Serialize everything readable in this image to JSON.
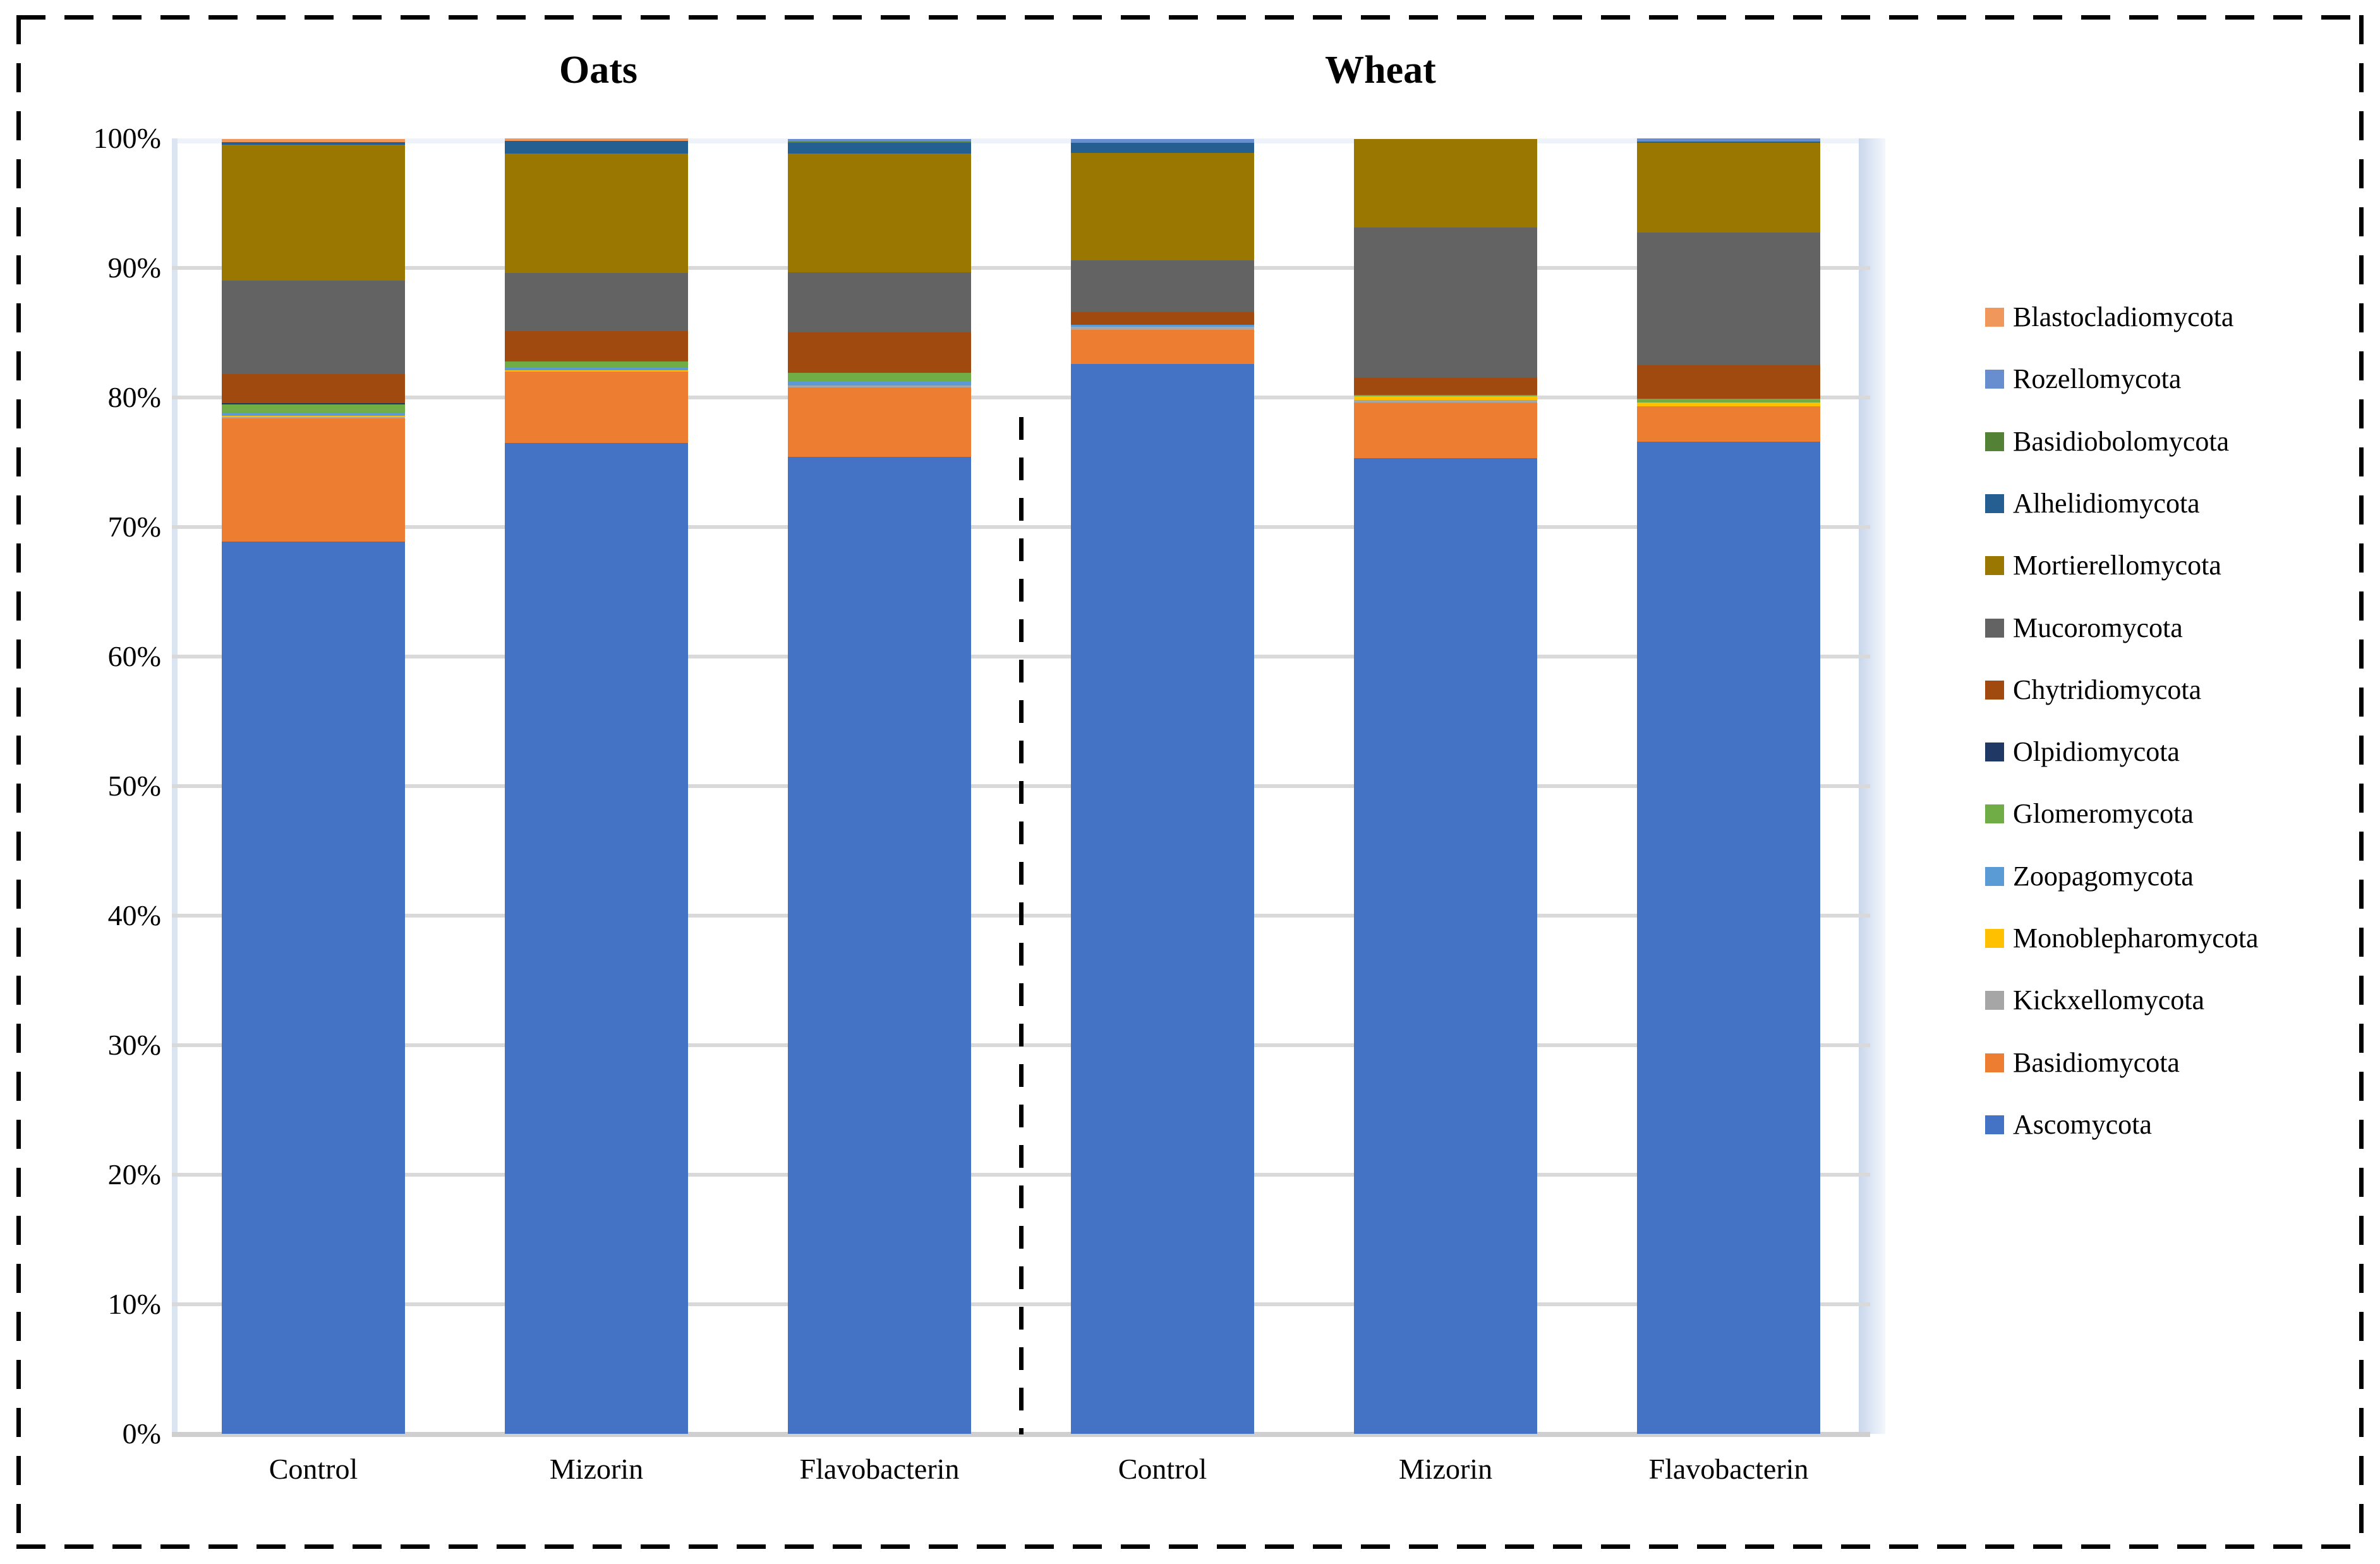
{
  "group_titles": [
    "Oats",
    "Wheat"
  ],
  "y_axis": {
    "tick_labels": [
      "100%",
      "90%",
      "80%",
      "70%",
      "60%",
      "50%",
      "40%",
      "30%",
      "20%",
      "10%",
      "0%"
    ]
  },
  "x_axis": {
    "labels": [
      "Control",
      "Mizorin",
      "Flavobacterin",
      "Control",
      "Mizorin",
      "Flavobacterin"
    ]
  },
  "legend": {
    "position": "right",
    "items_top_to_bottom": [
      "Blastocladiomycota",
      "Rozellomycota",
      "Basidiobolomycota",
      "Alhelidiomycota",
      "Mortierellomycota",
      "Mucoromycota",
      "Chytridiomycota",
      "Olpidiomycota",
      "Glomeromycota",
      "Zoopagomycota",
      "Monoblepharomycota",
      "Kickxellomycota",
      "Basidiomycota",
      "Ascomycota"
    ]
  },
  "chart_data": {
    "type": "bar",
    "stacked": true,
    "stack_unit": "percent",
    "title": "",
    "xlabel": "",
    "ylabel": "",
    "ylim": [
      0,
      100
    ],
    "ytick_step": 10,
    "grid": true,
    "legend_position": "right",
    "group_titles": [
      "Oats",
      "Wheat"
    ],
    "groups": [
      {
        "title": "Oats",
        "categories": [
          "Control",
          "Mizorin",
          "Flavobacterin"
        ]
      },
      {
        "title": "Wheat",
        "categories": [
          "Control",
          "Mizorin",
          "Flavobacterin"
        ]
      }
    ],
    "categories": [
      "Oats Control",
      "Oats Mizorin",
      "Oats Flavobacterin",
      "Wheat Control",
      "Wheat Mizorin",
      "Wheat Flavobacterin"
    ],
    "series_bottom_to_top": [
      {
        "name": "Ascomycota",
        "color": "#4472C4",
        "values": [
          68.9,
          76.5,
          75.4,
          82.6,
          75.3,
          76.6
        ]
      },
      {
        "name": "Basidiomycota",
        "color": "#ED7D31",
        "values": [
          9.5,
          5.5,
          5.4,
          2.6,
          4.3,
          2.7
        ]
      },
      {
        "name": "Kickxellomycota",
        "color": "#A6A6A6",
        "values": [
          0.1,
          0.0,
          0.15,
          0.25,
          0.2,
          0.0
        ]
      },
      {
        "name": "Monoblepharomycota",
        "color": "#FFC000",
        "values": [
          0.1,
          0.1,
          0.0,
          0.0,
          0.3,
          0.3
        ]
      },
      {
        "name": "Zoopagomycota",
        "color": "#5B9BD5",
        "values": [
          0.2,
          0.2,
          0.25,
          0.15,
          0.0,
          0.0
        ]
      },
      {
        "name": "Glomeromycota",
        "color": "#70AD47",
        "values": [
          0.65,
          0.5,
          0.7,
          0.0,
          0.1,
          0.3
        ]
      },
      {
        "name": "Olpidiomycota",
        "color": "#1F3864",
        "values": [
          0.1,
          0.0,
          0.0,
          0.0,
          0.0,
          0.0
        ]
      },
      {
        "name": "Chytridiomycota",
        "color": "#A04A10",
        "values": [
          2.25,
          2.3,
          3.15,
          1.0,
          1.3,
          2.6
        ]
      },
      {
        "name": "Mucoromycota",
        "color": "#636363",
        "values": [
          7.25,
          4.5,
          4.6,
          4.0,
          11.6,
          10.25
        ]
      },
      {
        "name": "Mortierellomycota",
        "color": "#9A7700",
        "values": [
          10.45,
          9.25,
          9.2,
          8.3,
          6.85,
          6.9
        ]
      },
      {
        "name": "Alhelidiomycota",
        "color": "#255E91",
        "values": [
          0.2,
          0.95,
          0.8,
          0.75,
          0.0,
          0.1
        ]
      },
      {
        "name": "Basidiobolomycota",
        "color": "#538135",
        "values": [
          0.0,
          0.0,
          0.1,
          0.0,
          0.0,
          0.0
        ]
      },
      {
        "name": "Rozellomycota",
        "color": "#698ED0",
        "values": [
          0.0,
          0.0,
          0.2,
          0.3,
          0.0,
          0.25
        ]
      },
      {
        "name": "Blastocladiomycota",
        "color": "#F0985C",
        "values": [
          0.25,
          0.2,
          0.0,
          0.0,
          0.0,
          0.0
        ]
      }
    ]
  }
}
